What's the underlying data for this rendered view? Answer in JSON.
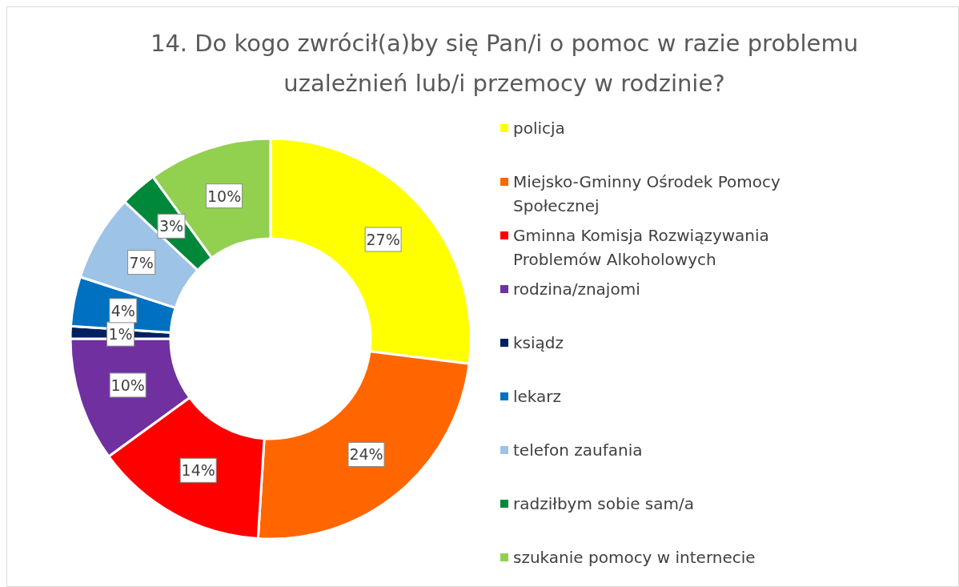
{
  "chart_data": {
    "type": "donut",
    "title": "14. Do kogo zwrócił(a)by się Pan/i o pomoc w razie problemu uzależnień lub/i przemocy w rodzinie?",
    "categories": [
      "policja",
      "Miejsko-Gminny Ośrodek Pomocy Społecznej",
      "Gminna Komisja Rozwiązywania Problemów Alkoholowych",
      "rodzina/znajomi",
      "ksiądz",
      "lekarz",
      "telefon zaufania",
      "radziłbym sobie sam/a",
      "szukanie pomocy w internecie"
    ],
    "values": [
      27,
      24,
      14,
      10,
      1,
      4,
      7,
      3,
      10
    ],
    "colors": [
      "#ffff00",
      "#ff6600",
      "#ff0000",
      "#7030a0",
      "#002060",
      "#0070c0",
      "#9dc3e6",
      "#00883a",
      "#92d050"
    ],
    "value_labels": [
      "27%",
      "24%",
      "14%",
      "10%",
      "1%",
      "4%",
      "7%",
      "3%",
      "10%"
    ],
    "legend": "right"
  }
}
